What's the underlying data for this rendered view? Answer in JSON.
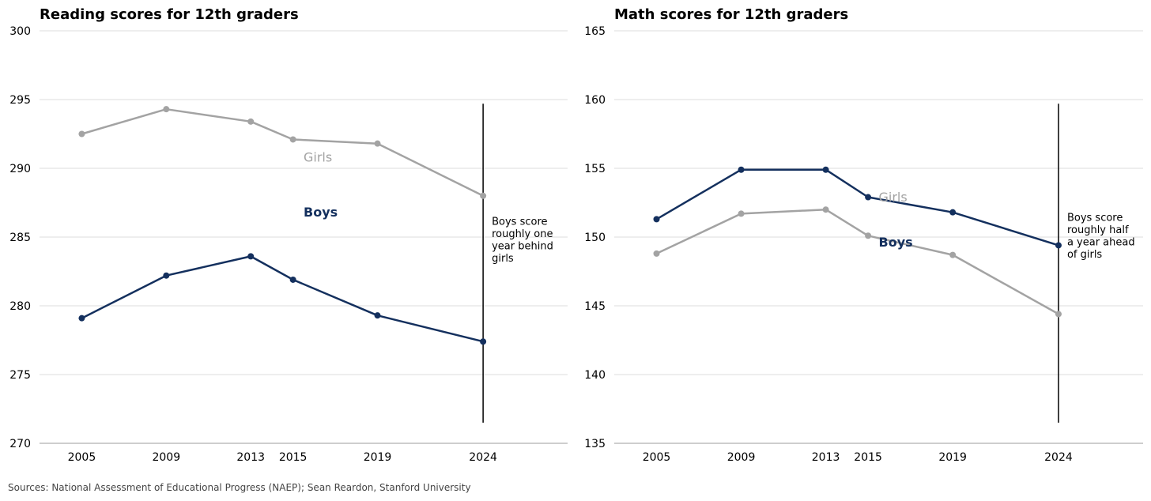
{
  "colors": {
    "boys": "#14305e",
    "girls": "#a3a3a3",
    "grid": "#dcdcdc",
    "axis": "#bdbdbd",
    "marker_line": "#000000"
  },
  "source": "Sources: National Assessment of Educational Progress (NAEP); Sean Reardon, Stanford University",
  "chart_data": [
    {
      "type": "line",
      "title": "Reading scores for 12th graders",
      "x": [
        2005,
        2009,
        2013,
        2015,
        2019,
        2024
      ],
      "xticks": [
        "2005",
        "2009",
        "2013",
        "2015",
        "2019",
        "2024"
      ],
      "xlim": [
        2003,
        2028
      ],
      "ylim": [
        270,
        300
      ],
      "yticks": [
        270,
        275,
        280,
        285,
        290,
        295,
        300
      ],
      "series": [
        {
          "name": "Girls",
          "key": "girls",
          "values": [
            292.5,
            294.3,
            293.4,
            292.1,
            291.8,
            288.0
          ]
        },
        {
          "name": "Boys",
          "key": "boys",
          "values": [
            279.1,
            282.2,
            283.6,
            281.9,
            279.3,
            277.4
          ]
        }
      ],
      "labels": [
        {
          "text": "Girls",
          "key": "girls",
          "x": 2015.5,
          "y": 290.5
        },
        {
          "text": "Boys",
          "key": "boys",
          "x": 2015.5,
          "y": 286.5
        }
      ],
      "vline": {
        "x": 2024,
        "y_from": 271.5,
        "y_to": 294.7
      },
      "annotation": {
        "lines": [
          "Boys score",
          "roughly one",
          "year behind",
          "girls"
        ]
      }
    },
    {
      "type": "line",
      "title": "Math scores for 12th graders",
      "x": [
        2005,
        2009,
        2013,
        2015,
        2019,
        2024
      ],
      "xticks": [
        "2005",
        "2009",
        "2013",
        "2015",
        "2019",
        "2024"
      ],
      "xlim": [
        2003,
        2028
      ],
      "ylim": [
        135,
        165
      ],
      "yticks": [
        135,
        140,
        145,
        150,
        155,
        160,
        165
      ],
      "series": [
        {
          "name": "Girls",
          "key": "girls",
          "values": [
            148.8,
            151.7,
            152.0,
            150.1,
            148.7,
            144.4
          ]
        },
        {
          "name": "Boys",
          "key": "boys",
          "values": [
            151.3,
            154.9,
            154.9,
            152.9,
            151.8,
            149.4
          ]
        }
      ],
      "labels": [
        {
          "text": "Girls",
          "key": "girls",
          "x": 2015.5,
          "y": 152.6
        },
        {
          "text": "Boys",
          "key": "boys",
          "x": 2015.5,
          "y": 149.3
        }
      ],
      "vline": {
        "x": 2024,
        "y_from": 136.5,
        "y_to": 159.7
      },
      "annotation": {
        "lines": [
          "Boys score",
          "roughly half",
          "a year ahead",
          "of girls"
        ]
      }
    }
  ]
}
